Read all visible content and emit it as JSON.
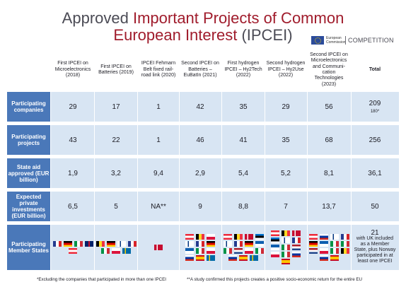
{
  "title": {
    "line1_normal": "Approved ",
    "line1_accent": "Important Projects of Common",
    "line2_accent": "European Interest",
    "line2_normal": " (IPCEI)"
  },
  "logo": {
    "org_name": "European Commission",
    "department": "COMPETITION"
  },
  "columns": [
    "First IPCEI on Microelectronics (2018)",
    "First IPCEI on Batteries (2019)",
    "IPCEI Fehmarn Belt fixed rail-road link (2020)",
    "Second IPCEI on Batteries – EuBatIn (2021)",
    "First hydrogen IPCEI – Hy2Tech (2022)",
    "Second hydrogen IPCEI – Hy2Use (2022)",
    "Second IPCEI on Microelectronics and Communi-cation Technologies (2023)",
    "Total"
  ],
  "rows": [
    {
      "label": "Participating companies",
      "values": [
        "29",
        "17",
        "1",
        "42",
        "35",
        "29",
        "56",
        "209"
      ],
      "total_sub": "180*"
    },
    {
      "label": "Participating projects",
      "values": [
        "43",
        "22",
        "1",
        "46",
        "41",
        "35",
        "68",
        "256"
      ]
    },
    {
      "label": "State aid approved (EUR billion)",
      "values": [
        "1,9",
        "3,2",
        "9,4",
        "2,9",
        "5,4",
        "5,2",
        "8,1",
        "36,1"
      ]
    },
    {
      "label": "Expected private investments (EUR billion)",
      "values": [
        "6,5",
        "5",
        "NA**",
        "9",
        "8,8",
        "7",
        "13,7",
        "50"
      ]
    },
    {
      "label": "Participating Member States",
      "total_big": "21",
      "total_text": "with UK included as a Member State, plus Norway participated in at least one IPCEI"
    }
  ],
  "member_state_flags": [
    [
      "fr-flag",
      "de-flag",
      "it-flag",
      "gb-flag",
      "at-flag"
    ],
    [
      "be-flag",
      "de-flag",
      "fi-flag",
      "fr-flag",
      "it-flag",
      "pl-flag",
      "se-flag"
    ],
    [
      "dk-flag"
    ],
    [
      "at-flag",
      "be-flag",
      "hr-flag",
      "fi-flag",
      "fr-flag",
      "de-flag",
      "gr-flag",
      "it-flag",
      "pl-flag",
      "sk-flag",
      "es-flag",
      "se-flag"
    ],
    [
      "at-flag",
      "be-flag",
      "dk-flag",
      "ee-flag",
      "fi-flag",
      "fr-flag",
      "de-flag",
      "gr-flag",
      "it-flag",
      "nl-flag",
      "pl-flag",
      "pt-flag",
      "sk-flag",
      "es-flag",
      "se-flag"
    ],
    [
      "at-flag",
      "be-flag",
      "dk-flag",
      "ee-flag",
      "fi-flag",
      "fr-flag",
      "gr-flag",
      "it-flag",
      "nl-flag",
      "pl-flag",
      "pt-flag",
      "sk-flag",
      "es-flag"
    ],
    [
      "at-flag",
      "cz-flag",
      "fi-flag",
      "fr-flag",
      "de-flag",
      "gr-flag",
      "it-flag",
      "ie-flag",
      "nl-flag",
      "pl-flag",
      "pt-flag",
      "ro-flag",
      "sk-flag",
      "es-flag"
    ]
  ],
  "footnotes": {
    "one": "*Excluding the companies that participated in more than one IPCEI",
    "two": "**A study confirmed this projects creates a positive socio-economic return for the entire EU"
  },
  "colors": {
    "title_accent": "#a01c2c",
    "title_normal": "#4b4b55",
    "row_label_bg": "#4a78b9",
    "row_band_bg": "#d8e5f3"
  }
}
